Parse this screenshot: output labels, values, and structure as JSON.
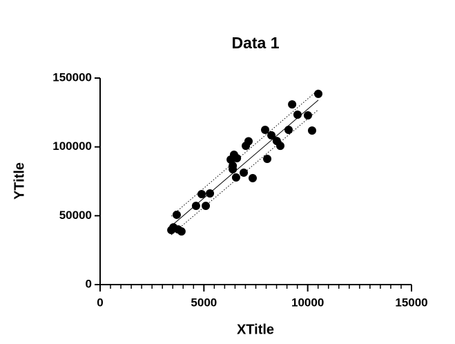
{
  "chart_data": {
    "type": "scatter",
    "title": "Data 1",
    "x_label": "XTitle",
    "y_label": "YTitle",
    "color": "#000000",
    "x": [
      3430,
      3530,
      3690,
      3760,
      3920,
      4620,
      4890,
      5090,
      5290,
      6290,
      6390,
      6390,
      6450,
      6590,
      6550,
      6920,
      7020,
      7150,
      7350,
      7950,
      8050,
      8250,
      8510,
      8680,
      9080,
      9250,
      9510,
      10010,
      10210,
      10510
    ],
    "values": [
      39600,
      41600,
      50700,
      40100,
      38600,
      57200,
      65700,
      57200,
      66200,
      90800,
      83800,
      86300,
      94300,
      91800,
      77800,
      81300,
      100800,
      104100,
      77300,
      112400,
      91300,
      108400,
      104300,
      100800,
      112400,
      130900,
      123400,
      122900,
      111900,
      138500
    ],
    "fit_line": {
      "x": [
        3430,
        10510
      ],
      "values": [
        42600,
        134000
      ]
    },
    "band_upper": {
      "x": [
        3430,
        10510
      ],
      "values": [
        49700,
        141500
      ]
    },
    "band_lower": {
      "x": [
        3430,
        10510
      ],
      "values": [
        36100,
        127000
      ]
    },
    "xlim": [
      0,
      15000
    ],
    "ylim": [
      0,
      150000
    ],
    "xticks": [
      0,
      5000,
      10000,
      15000
    ],
    "xminorticks": [
      500,
      1000,
      1500,
      2000,
      2500,
      3000,
      3500,
      4000,
      4500,
      5500,
      6000,
      6500,
      7000,
      7500,
      8000,
      8500,
      9000,
      9500,
      10500,
      11000,
      11500,
      12000,
      12500,
      13000,
      13500,
      14000,
      14500
    ],
    "yticks": [
      0,
      50000,
      100000,
      150000
    ]
  }
}
